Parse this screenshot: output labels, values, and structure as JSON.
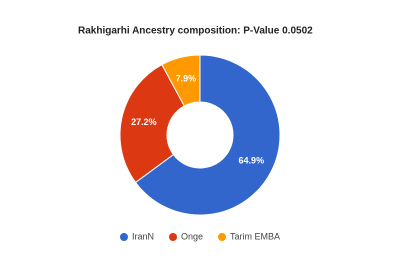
{
  "chart_data": {
    "type": "donut",
    "title": "Rakhigarhi Ancestry composition: P-Value 0.0502",
    "categories": [
      "IranN",
      "Onge",
      "Tarim EMBA"
    ],
    "values": [
      64.9,
      27.2,
      7.9
    ],
    "value_labels": [
      "64.9%",
      "27.2%",
      "7.9%"
    ],
    "colors": [
      "#3366cc",
      "#dc3912",
      "#ff9900"
    ],
    "legend": "bottom"
  }
}
